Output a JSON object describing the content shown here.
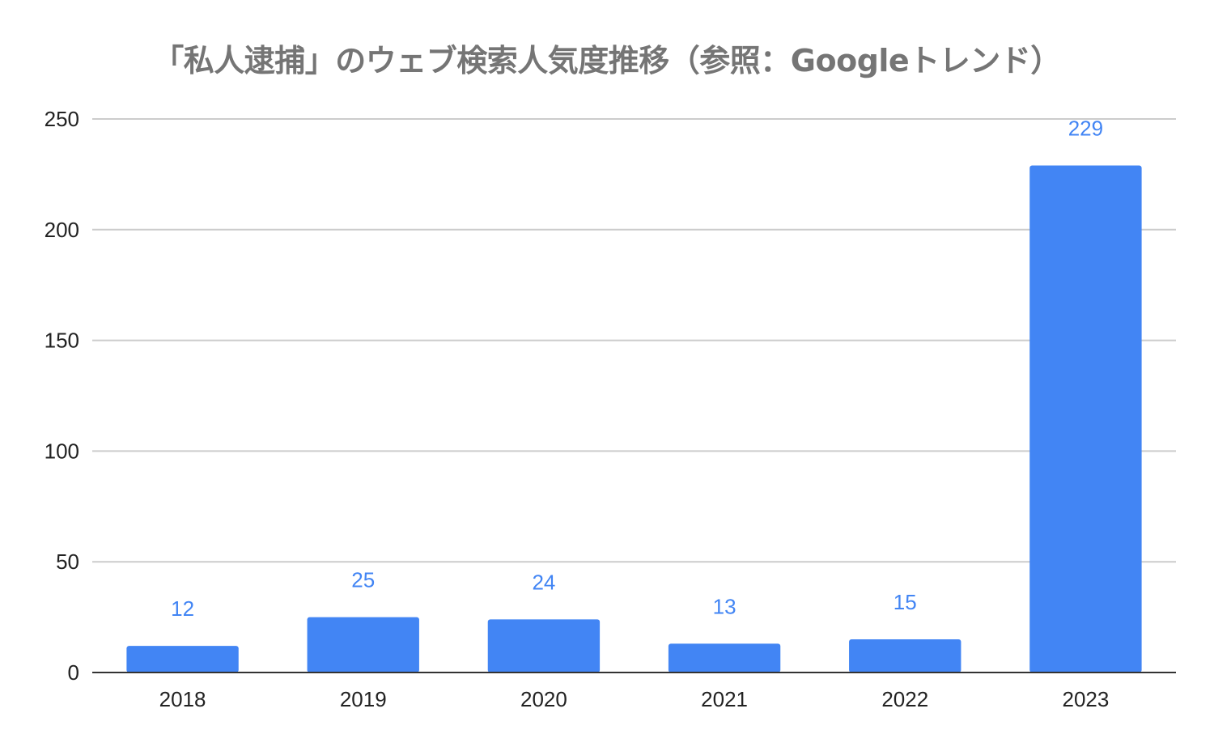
{
  "chart_data": {
    "type": "bar",
    "title": "「私人逮捕」のウェブ検索人気度推移（参照：Googleトレンド）",
    "xlabel": "",
    "ylabel": "",
    "categories": [
      "2018",
      "2019",
      "2020",
      "2021",
      "2022",
      "2023"
    ],
    "values": [
      12,
      25,
      24,
      13,
      15,
      229
    ],
    "ylim": [
      0,
      250
    ],
    "yticks": [
      0,
      50,
      100,
      150,
      200,
      250
    ],
    "data_labels": true,
    "grid": true,
    "legend": "none",
    "colors": {
      "bar": "#4285f4",
      "data_label": "#4285f4",
      "title": "#757575",
      "gridline": "#cccccc",
      "axis": "#333333",
      "tick_label": "#222222"
    }
  }
}
